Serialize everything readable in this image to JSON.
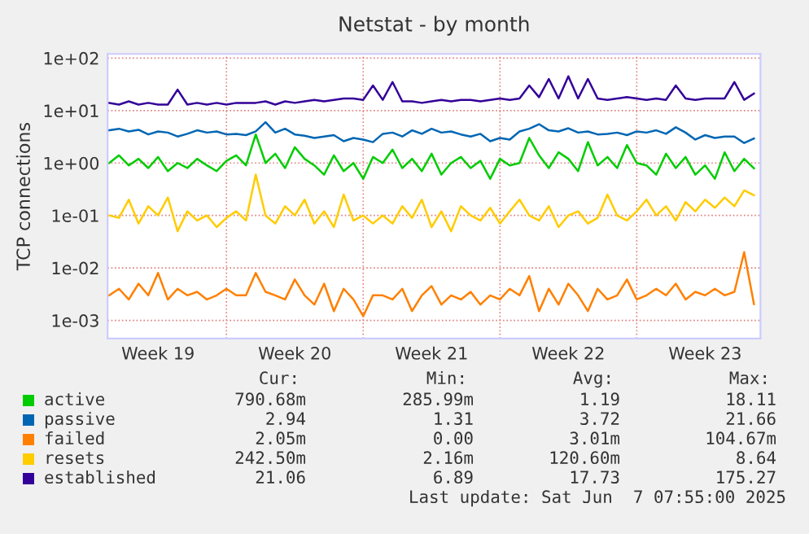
{
  "chart_data": {
    "type": "line",
    "title": "Netstat - by month",
    "ylabel": "TCP connections",
    "x": [
      "2025-05-05T00:00",
      "2025-05-05T12:00",
      "2025-05-06T00:00",
      "2025-05-06T12:00",
      "2025-05-07T00:00",
      "2025-05-07T12:00",
      "2025-05-08T00:00",
      "2025-05-08T12:00",
      "2025-05-09T00:00",
      "2025-05-09T12:00",
      "2025-05-10T00:00",
      "2025-05-10T12:00",
      "2025-05-11T00:00",
      "2025-05-11T12:00",
      "2025-05-12T00:00",
      "2025-05-12T12:00",
      "2025-05-13T00:00",
      "2025-05-13T12:00",
      "2025-05-14T00:00",
      "2025-05-14T12:00",
      "2025-05-15T00:00",
      "2025-05-15T12:00",
      "2025-05-16T00:00",
      "2025-05-16T12:00",
      "2025-05-17T00:00",
      "2025-05-17T12:00",
      "2025-05-18T00:00",
      "2025-05-18T12:00",
      "2025-05-19T00:00",
      "2025-05-19T12:00",
      "2025-05-20T00:00",
      "2025-05-20T12:00",
      "2025-05-21T00:00",
      "2025-05-21T12:00",
      "2025-05-22T00:00",
      "2025-05-22T12:00",
      "2025-05-23T00:00",
      "2025-05-23T12:00",
      "2025-05-24T00:00",
      "2025-05-24T12:00",
      "2025-05-25T00:00",
      "2025-05-25T12:00",
      "2025-05-26T00:00",
      "2025-05-26T12:00",
      "2025-05-27T00:00",
      "2025-05-27T12:00",
      "2025-05-28T00:00",
      "2025-05-28T12:00",
      "2025-05-29T00:00",
      "2025-05-29T12:00",
      "2025-05-30T00:00",
      "2025-05-30T12:00",
      "2025-05-31T00:00",
      "2025-05-31T12:00",
      "2025-06-01T00:00",
      "2025-06-01T12:00",
      "2025-06-02T00:00",
      "2025-06-02T12:00",
      "2025-06-03T00:00",
      "2025-06-03T12:00",
      "2025-06-04T00:00",
      "2025-06-04T12:00",
      "2025-06-05T00:00",
      "2025-06-05T12:00",
      "2025-06-06T00:00",
      "2025-06-06T12:00",
      "2025-06-07T00:00"
    ],
    "series": [
      {
        "name": "active",
        "color": "#00cc00",
        "values": [
          1.0,
          1.4,
          0.9,
          1.2,
          0.8,
          1.3,
          0.7,
          1.0,
          0.8,
          1.2,
          0.9,
          0.7,
          1.1,
          1.4,
          0.9,
          3.5,
          1.0,
          1.5,
          0.8,
          2.0,
          1.2,
          0.9,
          0.6,
          1.4,
          0.7,
          1.0,
          0.5,
          1.3,
          1.0,
          1.8,
          0.8,
          1.2,
          0.7,
          1.5,
          0.6,
          1.0,
          1.3,
          0.8,
          1.1,
          0.5,
          1.2,
          0.9,
          1.0,
          3.0,
          1.4,
          0.8,
          1.6,
          1.2,
          0.7,
          2.5,
          0.9,
          1.3,
          0.8,
          2.2,
          1.0,
          0.9,
          0.6,
          1.5,
          0.8,
          1.3,
          0.6,
          0.9,
          0.5,
          1.6,
          0.7,
          1.2,
          0.79
        ]
      },
      {
        "name": "passive",
        "color": "#0066b3",
        "values": [
          4.2,
          4.5,
          4.0,
          4.3,
          3.5,
          4.0,
          3.8,
          3.2,
          3.6,
          4.2,
          3.8,
          4.0,
          3.5,
          3.6,
          3.4,
          4.0,
          6.0,
          3.8,
          4.5,
          3.5,
          3.3,
          3.0,
          3.2,
          3.4,
          2.6,
          3.0,
          2.8,
          2.5,
          3.6,
          3.8,
          3.2,
          4.2,
          3.6,
          4.5,
          3.8,
          4.0,
          3.5,
          3.2,
          3.6,
          2.6,
          3.0,
          2.8,
          4.0,
          4.5,
          5.5,
          4.2,
          4.0,
          4.6,
          3.8,
          4.0,
          3.5,
          3.6,
          3.8,
          3.4,
          4.0,
          3.8,
          4.2,
          3.6,
          4.8,
          3.8,
          2.8,
          3.4,
          3.0,
          3.2,
          3.2,
          2.4,
          2.94
        ]
      },
      {
        "name": "failed",
        "color": "#ff8000",
        "values": [
          0.003,
          0.004,
          0.0025,
          0.005,
          0.003,
          0.008,
          0.0025,
          0.004,
          0.003,
          0.0035,
          0.0025,
          0.003,
          0.004,
          0.003,
          0.003,
          0.008,
          0.0035,
          0.003,
          0.0025,
          0.006,
          0.003,
          0.002,
          0.005,
          0.0015,
          0.004,
          0.0025,
          0.0012,
          0.003,
          0.003,
          0.0025,
          0.004,
          0.0015,
          0.003,
          0.0045,
          0.002,
          0.003,
          0.0025,
          0.0035,
          0.002,
          0.003,
          0.0025,
          0.004,
          0.003,
          0.007,
          0.0015,
          0.004,
          0.002,
          0.005,
          0.003,
          0.0015,
          0.004,
          0.0025,
          0.003,
          0.006,
          0.0025,
          0.003,
          0.004,
          0.003,
          0.005,
          0.0025,
          0.0035,
          0.003,
          0.004,
          0.003,
          0.0035,
          0.02,
          0.00205
        ]
      },
      {
        "name": "resets",
        "color": "#ffcc00",
        "values": [
          0.1,
          0.09,
          0.2,
          0.07,
          0.15,
          0.1,
          0.22,
          0.05,
          0.12,
          0.08,
          0.1,
          0.06,
          0.09,
          0.12,
          0.08,
          0.6,
          0.1,
          0.07,
          0.15,
          0.1,
          0.2,
          0.07,
          0.12,
          0.06,
          0.25,
          0.08,
          0.1,
          0.07,
          0.1,
          0.07,
          0.15,
          0.09,
          0.2,
          0.06,
          0.12,
          0.05,
          0.15,
          0.1,
          0.08,
          0.14,
          0.07,
          0.12,
          0.2,
          0.1,
          0.08,
          0.15,
          0.06,
          0.1,
          0.12,
          0.07,
          0.09,
          0.25,
          0.1,
          0.08,
          0.12,
          0.2,
          0.1,
          0.15,
          0.08,
          0.18,
          0.12,
          0.2,
          0.14,
          0.22,
          0.15,
          0.3,
          0.2425
        ]
      },
      {
        "name": "established",
        "color": "#330099",
        "values": [
          14,
          13,
          15,
          13,
          14,
          13,
          13,
          25,
          13,
          14,
          13,
          14,
          13,
          14,
          14,
          14,
          15,
          13,
          15,
          14,
          15,
          16,
          15,
          16,
          17,
          17,
          16,
          30,
          16,
          35,
          15,
          15,
          14,
          15,
          16,
          15,
          16,
          16,
          15,
          16,
          17,
          16,
          17,
          30,
          18,
          40,
          17,
          45,
          17,
          40,
          17,
          16,
          17,
          18,
          17,
          16,
          17,
          16,
          30,
          17,
          16,
          17,
          17,
          17,
          35,
          16,
          21.06
        ]
      }
    ],
    "log": "y",
    "ylim": [
      0.00045,
      120
    ],
    "yticks": [
      {
        "value": 0.001,
        "label": "1e-03"
      },
      {
        "value": 0.01,
        "label": "1e-02"
      },
      {
        "value": 0.1,
        "label": "1e-01"
      },
      {
        "value": 1,
        "label": "1e+00"
      },
      {
        "value": 10,
        "label": "1e+01"
      },
      {
        "value": 100,
        "label": "1e+02"
      }
    ],
    "xlim": [
      "2025-05-04T22:00",
      "2025-06-07T08:00"
    ],
    "xticks": [
      {
        "value": "2025-05-07T12:00",
        "label": "Week 19"
      },
      {
        "value": "2025-05-14T12:00",
        "label": "Week 20"
      },
      {
        "value": "2025-05-21T12:00",
        "label": "Week 21"
      },
      {
        "value": "2025-05-28T12:00",
        "label": "Week 22"
      },
      {
        "value": "2025-06-04T12:00",
        "label": "Week 23"
      }
    ],
    "ref_lines": [
      {
        "axis": "x",
        "value": "2025-05-11T00:00",
        "color": "#e88080",
        "line_style": "dotted"
      },
      {
        "axis": "x",
        "value": "2025-05-18T00:00",
        "color": "#e88080",
        "line_style": "dotted"
      },
      {
        "axis": "x",
        "value": "2025-05-25T00:00",
        "color": "#e88080",
        "line_style": "dotted"
      },
      {
        "axis": "x",
        "value": "2025-06-01T00:00",
        "color": "#e88080",
        "line_style": "dotted"
      }
    ],
    "grid": "y",
    "legend": "bottom",
    "marker": "none",
    "line_style": "solid",
    "annotations": [
      "Cur:",
      "Min:",
      "Avg:",
      "Max:",
      "790.68m",
      "285.99m",
      "1.19",
      "18.11",
      "2.94",
      "1.31",
      "3.72",
      "21.66",
      "2.05m",
      "0.00",
      "3.01m",
      "104.67m",
      "242.50m",
      "2.16m",
      "120.60m",
      "8.64",
      "21.06",
      "6.89",
      "17.73",
      "175.27",
      "Last update: Sat Jun  7 07:55:00 2025"
    ]
  }
}
